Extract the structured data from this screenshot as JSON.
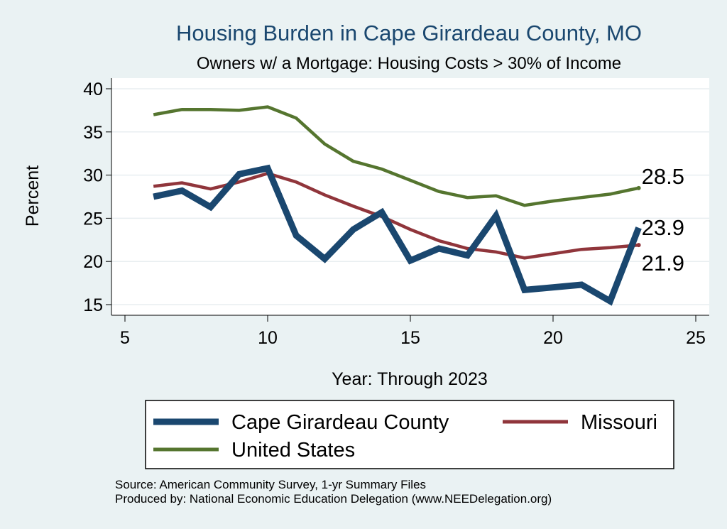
{
  "chart_data": {
    "type": "line",
    "title": "Housing Burden in Cape Girardeau County, MO",
    "subtitle": "Owners w/ a Mortgage: Housing Costs > 30% of Income",
    "xlabel": "Year: Through 2023",
    "ylabel": "Percent",
    "xlim": [
      5,
      25
    ],
    "ylim": [
      15,
      40
    ],
    "xticks": [
      "5",
      "10",
      "15",
      "20",
      "25"
    ],
    "yticks": [
      "15",
      "20",
      "25",
      "30",
      "35",
      "40"
    ],
    "grid": true,
    "legend_position": "bottom",
    "series": [
      {
        "name": "Cape Girardeau County",
        "color": "#1a476f",
        "x": [
          6,
          7,
          8,
          9,
          10,
          11,
          12,
          13,
          14,
          15,
          16,
          17,
          18,
          19,
          20,
          21,
          22,
          23
        ],
        "values": [
          27.5,
          28.2,
          26.3,
          30.1,
          30.8,
          23.0,
          20.3,
          23.7,
          25.7,
          20.1,
          21.5,
          20.7,
          25.3,
          16.7,
          17.0,
          17.3,
          15.4,
          23.9
        ],
        "end_label": "23.9"
      },
      {
        "name": "Missouri",
        "color": "#90353b",
        "x": [
          6,
          7,
          8,
          9,
          10,
          11,
          12,
          13,
          14,
          15,
          16,
          17,
          18,
          19,
          20,
          21,
          22,
          23
        ],
        "values": [
          28.7,
          29.1,
          28.4,
          29.2,
          30.2,
          29.2,
          27.7,
          26.4,
          25.2,
          23.7,
          22.4,
          21.5,
          21.1,
          20.4,
          20.9,
          21.4,
          21.6,
          21.9
        ],
        "end_label": "21.9"
      },
      {
        "name": "United States",
        "color": "#55752f",
        "x": [
          6,
          7,
          8,
          9,
          10,
          11,
          12,
          13,
          14,
          15,
          16,
          17,
          18,
          19,
          20,
          21,
          22,
          23
        ],
        "values": [
          37.0,
          37.6,
          37.6,
          37.5,
          37.9,
          36.6,
          33.6,
          31.6,
          30.7,
          29.4,
          28.1,
          27.4,
          27.6,
          26.5,
          27.0,
          27.4,
          27.8,
          28.5
        ],
        "end_label": "28.5"
      }
    ]
  },
  "notes": {
    "source": "Source: American Community Survey, 1-yr Summary Files",
    "produced": "Produced by: National Economic Education Delegation (www.NEEDelegation.org)"
  }
}
